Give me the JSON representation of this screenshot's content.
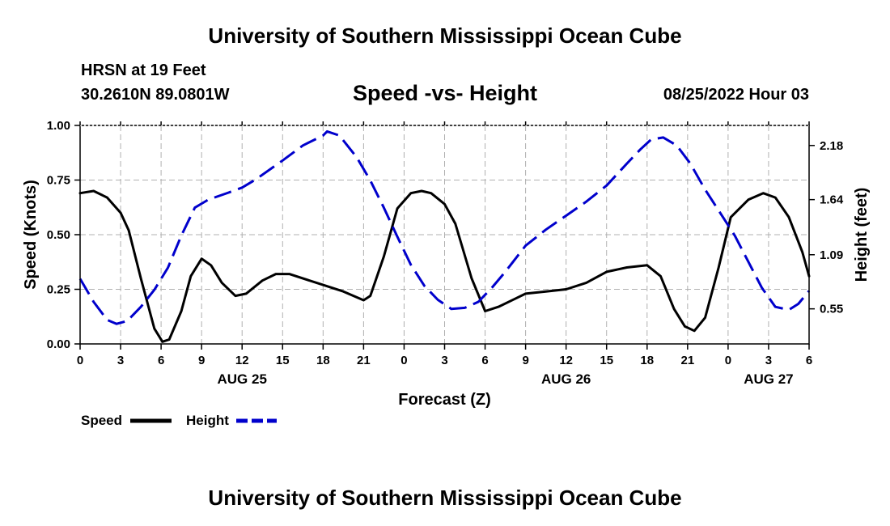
{
  "header": {
    "title": "University of Southern Mississippi Ocean Cube",
    "station": "HRSN at 19 Feet",
    "coordinates": "30.2610N  89.0801W",
    "timestamp": "08/25/2022 Hour 03"
  },
  "footer": {
    "title": "University of Southern Mississippi Ocean Cube"
  },
  "chart_data": {
    "type": "line",
    "title": "Speed -vs- Height",
    "xlabel": "Forecast (Z)",
    "ylabel": "Speed (Knots)",
    "y2label": "Height (feet)",
    "x_range_hours": [
      0,
      54
    ],
    "x_ticks": [
      {
        "h": 0,
        "label": "0"
      },
      {
        "h": 3,
        "label": "3"
      },
      {
        "h": 6,
        "label": "6"
      },
      {
        "h": 9,
        "label": "9"
      },
      {
        "h": 12,
        "label": "12"
      },
      {
        "h": 15,
        "label": "15"
      },
      {
        "h": 18,
        "label": "18"
      },
      {
        "h": 21,
        "label": "21"
      },
      {
        "h": 24,
        "label": "0"
      },
      {
        "h": 27,
        "label": "3"
      },
      {
        "h": 30,
        "label": "6"
      },
      {
        "h": 33,
        "label": "9"
      },
      {
        "h": 36,
        "label": "12"
      },
      {
        "h": 39,
        "label": "15"
      },
      {
        "h": 42,
        "label": "18"
      },
      {
        "h": 45,
        "label": "21"
      },
      {
        "h": 48,
        "label": "0"
      },
      {
        "h": 51,
        "label": "3"
      },
      {
        "h": 54,
        "label": "6"
      }
    ],
    "date_labels": [
      {
        "h": 12,
        "label": "AUG 25"
      },
      {
        "h": 36,
        "label": "AUG 26"
      },
      {
        "h": 51,
        "label": "AUG 27"
      }
    ],
    "ylim": [
      0,
      1
    ],
    "y_ticks": [
      "0.00",
      "0.25",
      "0.50",
      "0.75",
      "1.00"
    ],
    "y2lim": [
      0.2,
      2.38
    ],
    "y2_ticks": [
      "0.55",
      "1.09",
      "1.64",
      "2.18"
    ],
    "legend": [
      {
        "name": "Speed",
        "color": "#000000",
        "style": "solid"
      },
      {
        "name": "Height",
        "color": "#0000cc",
        "style": "dashed"
      }
    ],
    "series": [
      {
        "name": "Speed",
        "axis": "left",
        "color": "#000000",
        "style": "solid",
        "points": [
          [
            0,
            0.69
          ],
          [
            1,
            0.7
          ],
          [
            2,
            0.67
          ],
          [
            3,
            0.6
          ],
          [
            3.6,
            0.52
          ],
          [
            4.5,
            0.3
          ],
          [
            5.5,
            0.07
          ],
          [
            6.1,
            0.01
          ],
          [
            6.6,
            0.02
          ],
          [
            7.5,
            0.15
          ],
          [
            8.2,
            0.31
          ],
          [
            9.0,
            0.39
          ],
          [
            9.7,
            0.36
          ],
          [
            10.5,
            0.28
          ],
          [
            11.5,
            0.22
          ],
          [
            12.3,
            0.23
          ],
          [
            13.5,
            0.29
          ],
          [
            14.5,
            0.32
          ],
          [
            15.5,
            0.32
          ],
          [
            18,
            0.27
          ],
          [
            19.5,
            0.24
          ],
          [
            21,
            0.2
          ],
          [
            21.5,
            0.22
          ],
          [
            22.5,
            0.4
          ],
          [
            23.5,
            0.62
          ],
          [
            24.5,
            0.69
          ],
          [
            25.3,
            0.7
          ],
          [
            26.0,
            0.69
          ],
          [
            27.0,
            0.64
          ],
          [
            27.8,
            0.55
          ],
          [
            29,
            0.3
          ],
          [
            30.0,
            0.15
          ],
          [
            31,
            0.17
          ],
          [
            33,
            0.23
          ],
          [
            34.5,
            0.24
          ],
          [
            36,
            0.25
          ],
          [
            37.5,
            0.28
          ],
          [
            39,
            0.33
          ],
          [
            40.5,
            0.35
          ],
          [
            42,
            0.36
          ],
          [
            43,
            0.31
          ],
          [
            44,
            0.16
          ],
          [
            44.8,
            0.08
          ],
          [
            45.5,
            0.06
          ],
          [
            46.3,
            0.12
          ],
          [
            47.3,
            0.35
          ],
          [
            48.2,
            0.58
          ],
          [
            49.5,
            0.66
          ],
          [
            50.6,
            0.69
          ],
          [
            51.5,
            0.67
          ],
          [
            52.5,
            0.58
          ],
          [
            53.5,
            0.42
          ],
          [
            54,
            0.31
          ]
        ]
      },
      {
        "name": "Height",
        "axis": "right",
        "color": "#0000cc",
        "style": "dashed",
        "points": [
          [
            0,
            0.85
          ],
          [
            1,
            0.62
          ],
          [
            2,
            0.44
          ],
          [
            2.7,
            0.4
          ],
          [
            3.5,
            0.43
          ],
          [
            4.5,
            0.57
          ],
          [
            5.5,
            0.74
          ],
          [
            6.5,
            0.96
          ],
          [
            7.5,
            1.28
          ],
          [
            8.5,
            1.56
          ],
          [
            9.5,
            1.64
          ],
          [
            11,
            1.71
          ],
          [
            12,
            1.76
          ],
          [
            13,
            1.84
          ],
          [
            15,
            2.03
          ],
          [
            16.5,
            2.18
          ],
          [
            18,
            2.28
          ],
          [
            18.3,
            2.32
          ],
          [
            19.2,
            2.28
          ],
          [
            20.5,
            2.06
          ],
          [
            21.5,
            1.83
          ],
          [
            22.5,
            1.56
          ],
          [
            23.5,
            1.27
          ],
          [
            24.5,
            0.99
          ],
          [
            25.5,
            0.78
          ],
          [
            26.5,
            0.64
          ],
          [
            27.5,
            0.55
          ],
          [
            28.5,
            0.56
          ],
          [
            29.5,
            0.62
          ],
          [
            30.5,
            0.76
          ],
          [
            31.5,
            0.92
          ],
          [
            33,
            1.18
          ],
          [
            34.5,
            1.34
          ],
          [
            36,
            1.48
          ],
          [
            37.5,
            1.62
          ],
          [
            39,
            1.78
          ],
          [
            40.5,
            2.0
          ],
          [
            41.5,
            2.14
          ],
          [
            42.3,
            2.24
          ],
          [
            43.2,
            2.26
          ],
          [
            44.2,
            2.18
          ],
          [
            45.2,
            2.0
          ],
          [
            46.3,
            1.74
          ],
          [
            47.5,
            1.49
          ],
          [
            48.5,
            1.28
          ],
          [
            49.5,
            1.02
          ],
          [
            50.5,
            0.76
          ],
          [
            51.5,
            0.57
          ],
          [
            52.5,
            0.54
          ],
          [
            53.2,
            0.6
          ],
          [
            54,
            0.73
          ]
        ]
      }
    ]
  }
}
